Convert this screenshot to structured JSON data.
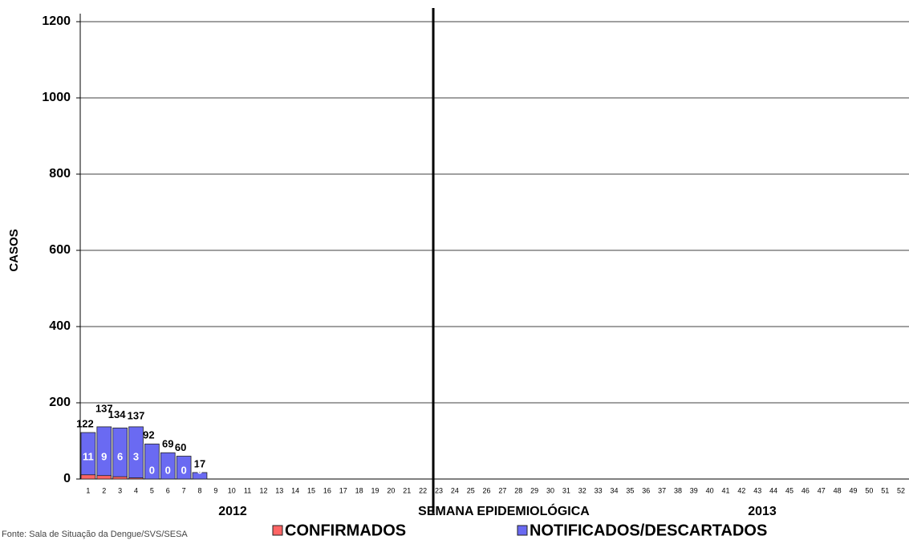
{
  "chart_data": {
    "type": "bar",
    "y_label": "CASOS",
    "x_label": "SEMANA EPIDEMIOLÓGICA",
    "period_labels": [
      "2012",
      "2013"
    ],
    "source": "Fonte: Sala de Situação da Dengue/SVS/SESA",
    "categories": [
      "1",
      "2",
      "3",
      "4",
      "5",
      "6",
      "7",
      "8",
      "9",
      "10",
      "11",
      "12",
      "13",
      "14",
      "15",
      "16",
      "17",
      "18",
      "19",
      "20",
      "21",
      "22",
      "23",
      "24",
      "25",
      "26",
      "27",
      "28",
      "29",
      "30",
      "31",
      "32",
      "33",
      "34",
      "35",
      "36",
      "37",
      "38",
      "39",
      "40",
      "41",
      "42",
      "43",
      "44",
      "45",
      "46",
      "47",
      "48",
      "49",
      "50",
      "51",
      "52"
    ],
    "series": [
      {
        "name": "NOTIFICADOS/DESCARTADOS",
        "color": "#6a6af2",
        "values": [
          122,
          137,
          134,
          137,
          92,
          69,
          60,
          17,
          null,
          null,
          null,
          null,
          null,
          null,
          null,
          null,
          null,
          null,
          null,
          null,
          null,
          null,
          null,
          null,
          null,
          null,
          null,
          null,
          null,
          null,
          null,
          null,
          null,
          null,
          null,
          null,
          null,
          null,
          null,
          null,
          null,
          null,
          null,
          null,
          null,
          null,
          null,
          null,
          null,
          null,
          null,
          null
        ]
      },
      {
        "name": "CONFIRMADOS",
        "color": "#ff6464",
        "values": [
          11,
          9,
          6,
          3,
          0,
          0,
          0,
          0,
          null,
          null,
          null,
          null,
          null,
          null,
          null,
          null,
          null,
          null,
          null,
          null,
          null,
          null,
          null,
          null,
          null,
          null,
          null,
          null,
          null,
          null,
          null,
          null,
          null,
          null,
          null,
          null,
          null,
          null,
          null,
          null,
          null,
          null,
          null,
          null,
          null,
          null,
          null,
          null,
          null,
          null,
          null,
          null
        ]
      }
    ],
    "ylim": [
      0,
      1200
    ],
    "yticks": [
      0,
      200,
      400,
      600,
      800,
      1000,
      1200
    ],
    "grid": true
  }
}
